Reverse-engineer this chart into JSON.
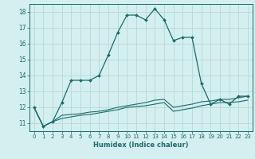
{
  "xlabel": "Humidex (Indice chaleur)",
  "background_color": "#d4efef",
  "grid_color": "#b8d8d8",
  "line_color": "#1a6b6b",
  "x_values": [
    0,
    1,
    2,
    3,
    4,
    5,
    6,
    7,
    8,
    9,
    10,
    11,
    12,
    13,
    14,
    15,
    16,
    17,
    18,
    19,
    20,
    21,
    22,
    23
  ],
  "main_y": [
    12.0,
    10.8,
    11.1,
    12.3,
    13.7,
    13.7,
    13.7,
    14.0,
    15.3,
    16.7,
    17.8,
    17.8,
    17.5,
    18.2,
    17.5,
    16.2,
    16.4,
    16.4,
    13.5,
    12.2,
    12.5,
    12.2,
    12.7,
    12.7
  ],
  "line2_y": [
    12.0,
    10.8,
    11.1,
    11.5,
    11.55,
    11.6,
    11.7,
    11.75,
    11.85,
    12.0,
    12.1,
    12.2,
    12.3,
    12.45,
    12.5,
    12.0,
    12.1,
    12.2,
    12.35,
    12.4,
    12.5,
    12.5,
    12.6,
    12.7
  ],
  "line3_y": [
    12.0,
    10.8,
    11.1,
    11.3,
    11.4,
    11.5,
    11.55,
    11.65,
    11.75,
    11.85,
    12.0,
    12.05,
    12.1,
    12.2,
    12.3,
    11.75,
    11.85,
    11.95,
    12.1,
    12.2,
    12.3,
    12.3,
    12.35,
    12.45
  ],
  "ylim": [
    10.5,
    18.5
  ],
  "yticks": [
    11,
    12,
    13,
    14,
    15,
    16,
    17,
    18
  ],
  "xticks": [
    0,
    1,
    2,
    3,
    4,
    5,
    6,
    7,
    8,
    9,
    10,
    11,
    12,
    13,
    14,
    15,
    16,
    17,
    18,
    19,
    20,
    21,
    22,
    23
  ]
}
